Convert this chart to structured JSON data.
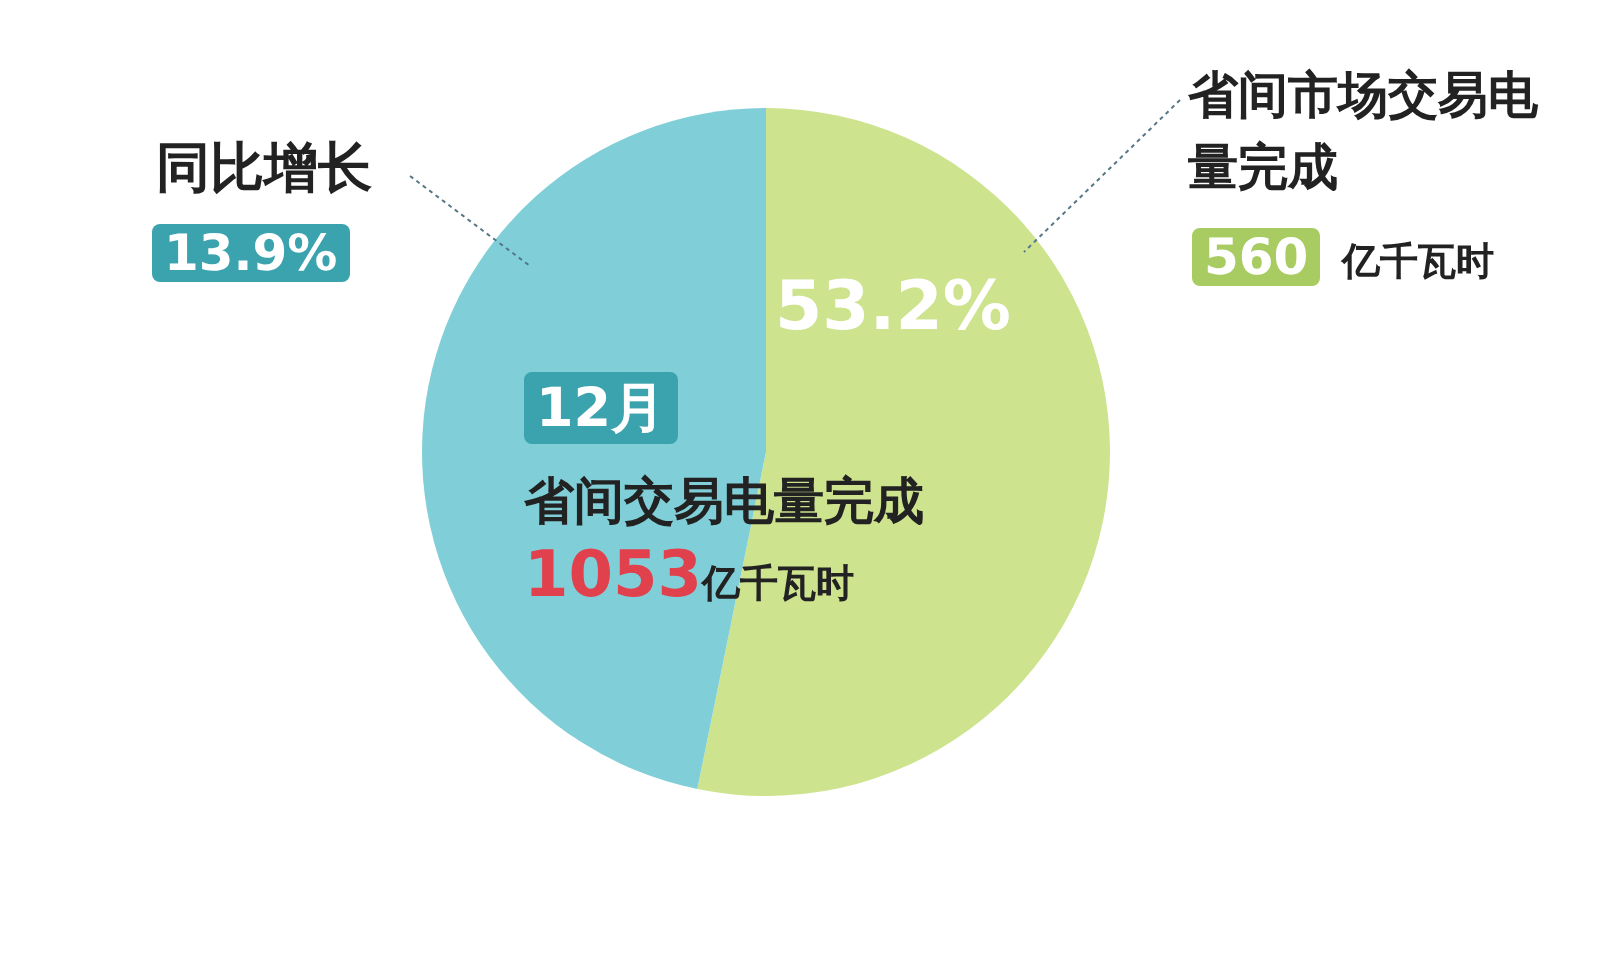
{
  "chart_data": {
    "type": "pie",
    "categories": [
      "省间市场交易电量完成",
      null
    ],
    "values": [
      53.2,
      46.8
    ],
    "colors": [
      "#cde38e",
      "#80cfd8"
    ],
    "value_labels": [
      "53.2%",
      null
    ],
    "legend": false,
    "annotations": [
      "同比增长",
      "13.9%",
      "12月",
      "省间交易电量完成",
      "1053亿千瓦时",
      "560 亿千瓦时"
    ]
  }
}
